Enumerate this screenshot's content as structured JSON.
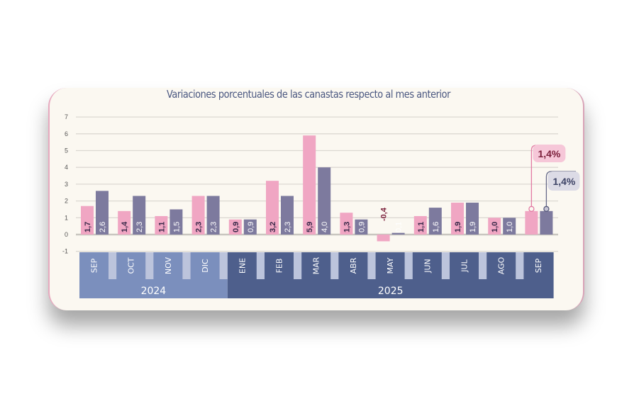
{
  "chart_data": {
    "type": "bar",
    "title": "Variaciones porcentuales de las canastas respecto al mes anterior",
    "categories": [
      "SEP",
      "OCT",
      "NOV",
      "DIC",
      "ENE",
      "FEB",
      "MAR",
      "ABR",
      "MAY",
      "JUN",
      "JUL",
      "AGO",
      "SEP"
    ],
    "years": [
      {
        "label": "2024",
        "months": 4,
        "color": "#7b8fbd"
      },
      {
        "label": "2025",
        "months": 9,
        "color": "#4e5f8c"
      }
    ],
    "series": [
      {
        "values": [
          1.7,
          1.4,
          1.1,
          2.3,
          0.9,
          3.2,
          5.9,
          1.3,
          -0.4,
          1.1,
          1.9,
          1.0,
          1.4
        ],
        "labels": [
          "1,7",
          "1,4",
          "1,1",
          "2,3",
          "0,9",
          "3,2",
          "5,9",
          "1,3",
          "-0,4",
          "1,1",
          "1,9",
          "1,0",
          ""
        ],
        "color": "#f0a6c3"
      },
      {
        "values": [
          2.6,
          2.3,
          1.5,
          2.3,
          0.9,
          2.3,
          4.0,
          0.9,
          0.1,
          1.6,
          1.9,
          1.0,
          1.4
        ],
        "labels": [
          "2,6",
          "2,3",
          "1,5",
          "2,3",
          "0,9",
          "2,3",
          "4,0",
          "0,9",
          "0,1",
          "1,6",
          "1,9",
          "1,0",
          ""
        ],
        "color": "#7d7a9e"
      }
    ],
    "callouts": [
      "1,4%",
      "1,4%"
    ],
    "yticks": [
      "7",
      "6",
      "5",
      "4",
      "3",
      "2",
      "1",
      "0",
      "-1"
    ],
    "ylim": [
      -1,
      7
    ],
    "grid": true
  }
}
